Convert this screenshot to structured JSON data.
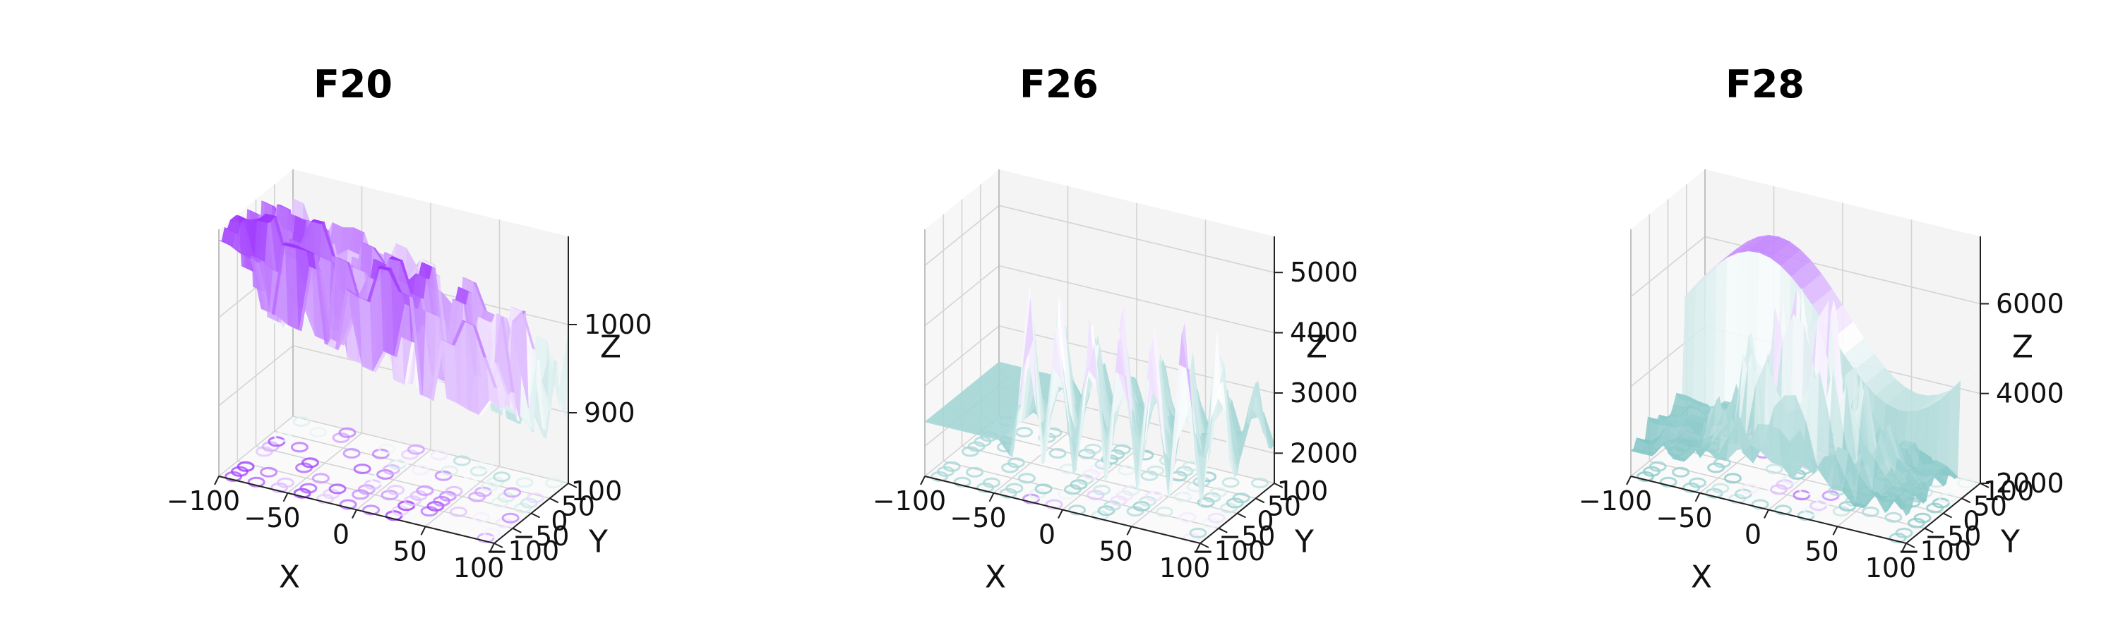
{
  "chart_data": [
    {
      "type": "surface3d",
      "title": "F20",
      "xlabel": "X",
      "ylabel": "Y",
      "zlabel": "Z",
      "x_ticks": [
        -100,
        -50,
        0,
        50,
        100
      ],
      "y_ticks": [
        -100,
        -50,
        0,
        50,
        100
      ],
      "z_ticks": [
        900,
        1000
      ],
      "xlim": [
        -100,
        100
      ],
      "ylim": [
        -100,
        100
      ],
      "zlim": [
        820,
        1100
      ],
      "grid": true,
      "colormap": [
        "#5fb5b5",
        "#ffffff",
        "#9b30ff"
      ],
      "projected_contours": true,
      "description_values": {
        "z_min_approx": 820,
        "z_max_approx": 1100
      }
    },
    {
      "type": "surface3d",
      "title": "F26",
      "xlabel": "X",
      "ylabel": "Y",
      "zlabel": "Z",
      "x_ticks": [
        -100,
        -50,
        0,
        50,
        100
      ],
      "y_ticks": [
        -100,
        -50,
        0,
        50,
        100
      ],
      "z_ticks": [
        2000,
        3000,
        4000,
        5000
      ],
      "xlim": [
        -100,
        100
      ],
      "ylim": [
        -100,
        100
      ],
      "zlim": [
        1500,
        5600
      ],
      "grid": true,
      "colormap": [
        "#5fb5b5",
        "#ffffff",
        "#9b30ff"
      ],
      "projected_contours": true
    },
    {
      "type": "surface3d",
      "title": "F28",
      "xlabel": "X",
      "ylabel": "Y",
      "zlabel": "Z",
      "x_ticks": [
        -100,
        -50,
        0,
        50,
        100
      ],
      "y_ticks": [
        -100,
        -50,
        0,
        50,
        100
      ],
      "z_ticks": [
        2000,
        4000,
        6000
      ],
      "xlim": [
        -100,
        100
      ],
      "ylim": [
        -100,
        100
      ],
      "zlim": [
        2000,
        7500
      ],
      "grid": true,
      "colormap": [
        "#5fb5b5",
        "#ffffff",
        "#9b30ff"
      ],
      "projected_contours": true
    }
  ]
}
